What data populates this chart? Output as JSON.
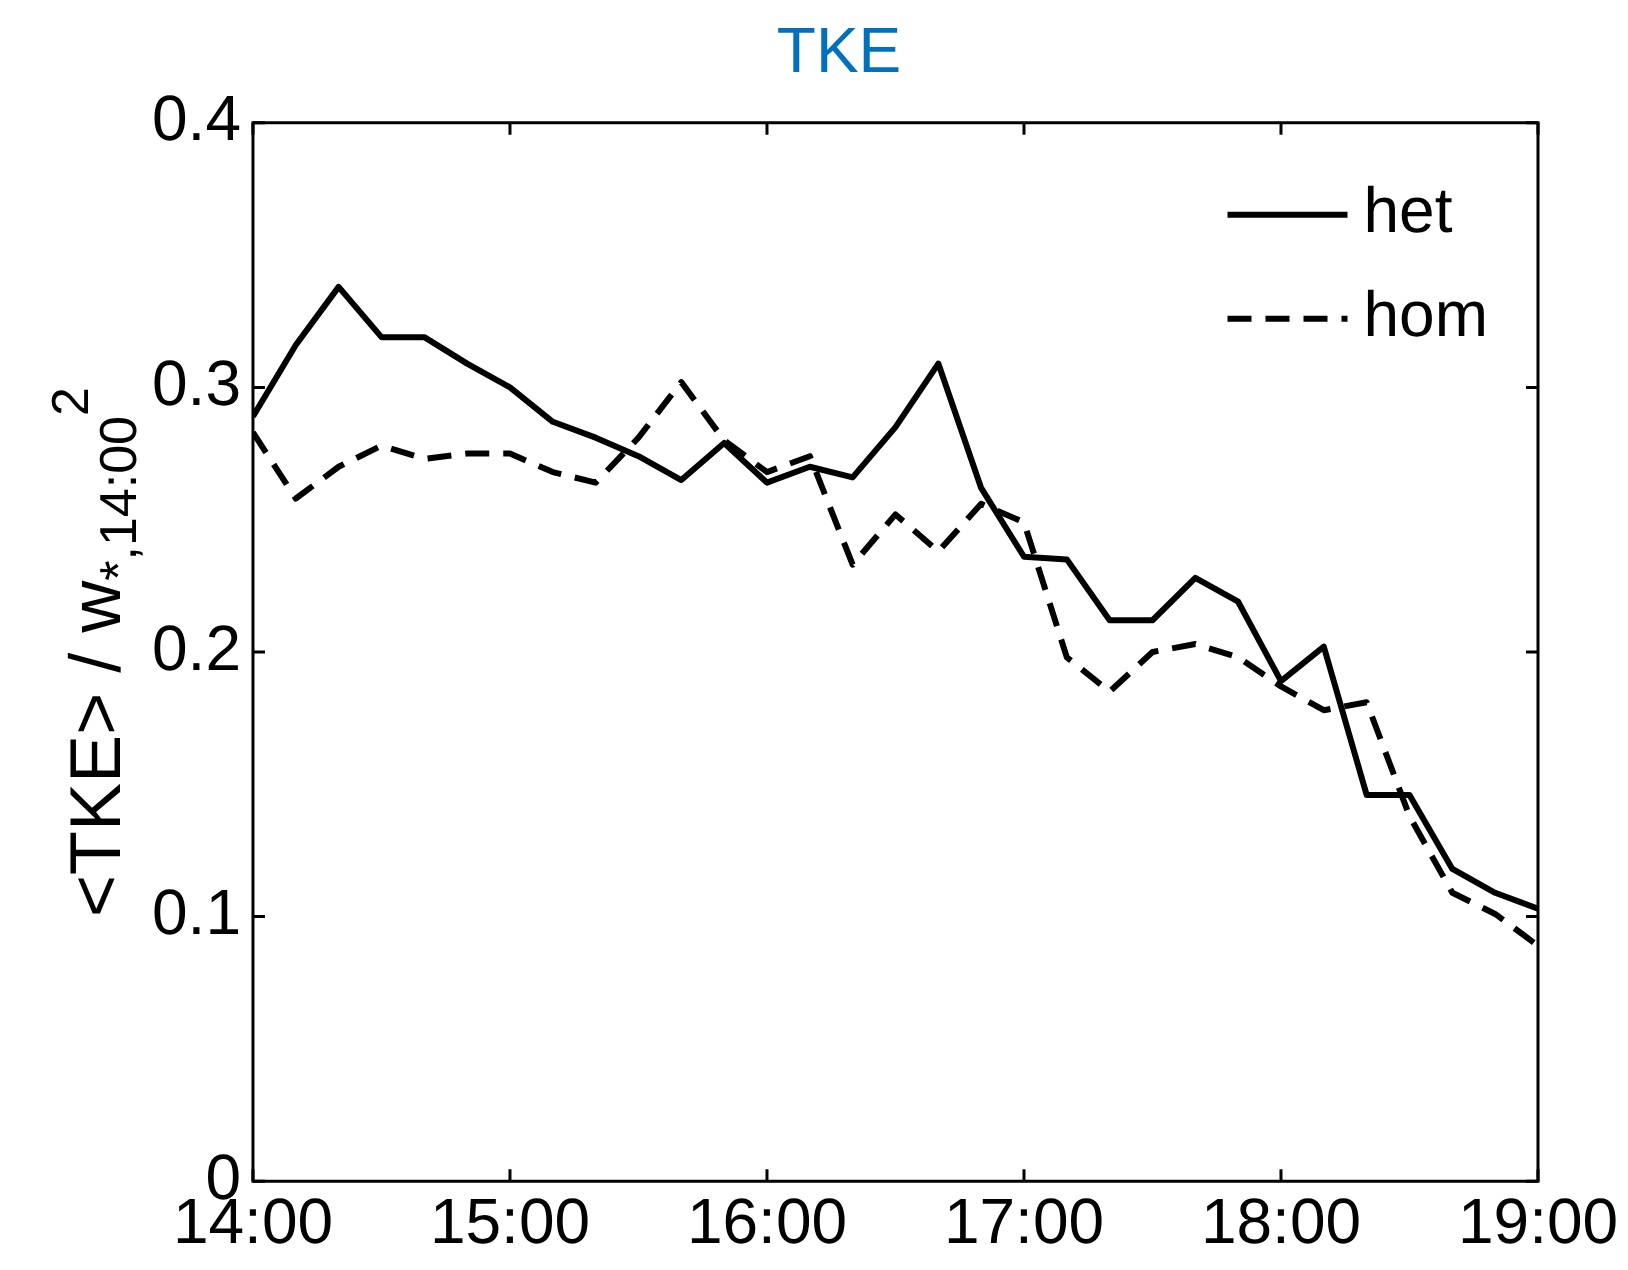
{
  "chart_data": {
    "type": "line",
    "title": "TKE",
    "ylabel": "<TKE> / w$_{*,14:00}$$^{2}$",
    "x": [
      14,
      14.1667,
      14.3333,
      14.5,
      14.6667,
      14.8333,
      15,
      15.1667,
      15.3333,
      15.5,
      15.6667,
      15.8333,
      16,
      16.1667,
      16.3333,
      16.5,
      16.6667,
      16.8333,
      17,
      17.1667,
      17.3333,
      17.5,
      17.6667,
      17.8333,
      18,
      18.1667,
      18.3333,
      18.5,
      18.6667,
      18.8333,
      19
    ],
    "series": [
      {
        "name": "het",
        "color": "#000000",
        "line_style": "solid",
        "values": [
          0.289,
          0.316,
          0.338,
          0.319,
          0.319,
          0.309,
          0.3,
          0.287,
          0.281,
          0.274,
          0.265,
          0.279,
          0.264,
          0.27,
          0.266,
          0.285,
          0.309,
          0.262,
          0.236,
          0.235,
          0.212,
          0.212,
          0.228,
          0.219,
          0.189,
          0.202,
          0.146,
          0.146,
          0.118,
          0.109,
          0.103
        ]
      },
      {
        "name": "hom",
        "color": "#000000",
        "line_style": "dashed",
        "values": [
          0.283,
          0.258,
          0.27,
          0.278,
          0.273,
          0.275,
          0.275,
          0.268,
          0.264,
          0.281,
          0.302,
          0.28,
          0.268,
          0.274,
          0.233,
          0.252,
          0.238,
          0.256,
          0.249,
          0.198,
          0.185,
          0.2,
          0.203,
          0.198,
          0.187,
          0.178,
          0.181,
          0.138,
          0.109,
          0.101,
          0.089
        ]
      }
    ],
    "xlim": [
      14,
      19
    ],
    "xticks": [
      {
        "value": 14,
        "label": "14:00"
      },
      {
        "value": 15,
        "label": "15:00"
      },
      {
        "value": 16,
        "label": "16:00"
      },
      {
        "value": 17,
        "label": "17:00"
      },
      {
        "value": 18,
        "label": "18:00"
      },
      {
        "value": 19,
        "label": "19:00"
      }
    ],
    "ylim": [
      0,
      0.4
    ],
    "yticks": [
      0,
      0.1,
      0.2,
      0.3,
      0.4
    ],
    "grid": false,
    "legend": "top right",
    "marker": "none"
  }
}
